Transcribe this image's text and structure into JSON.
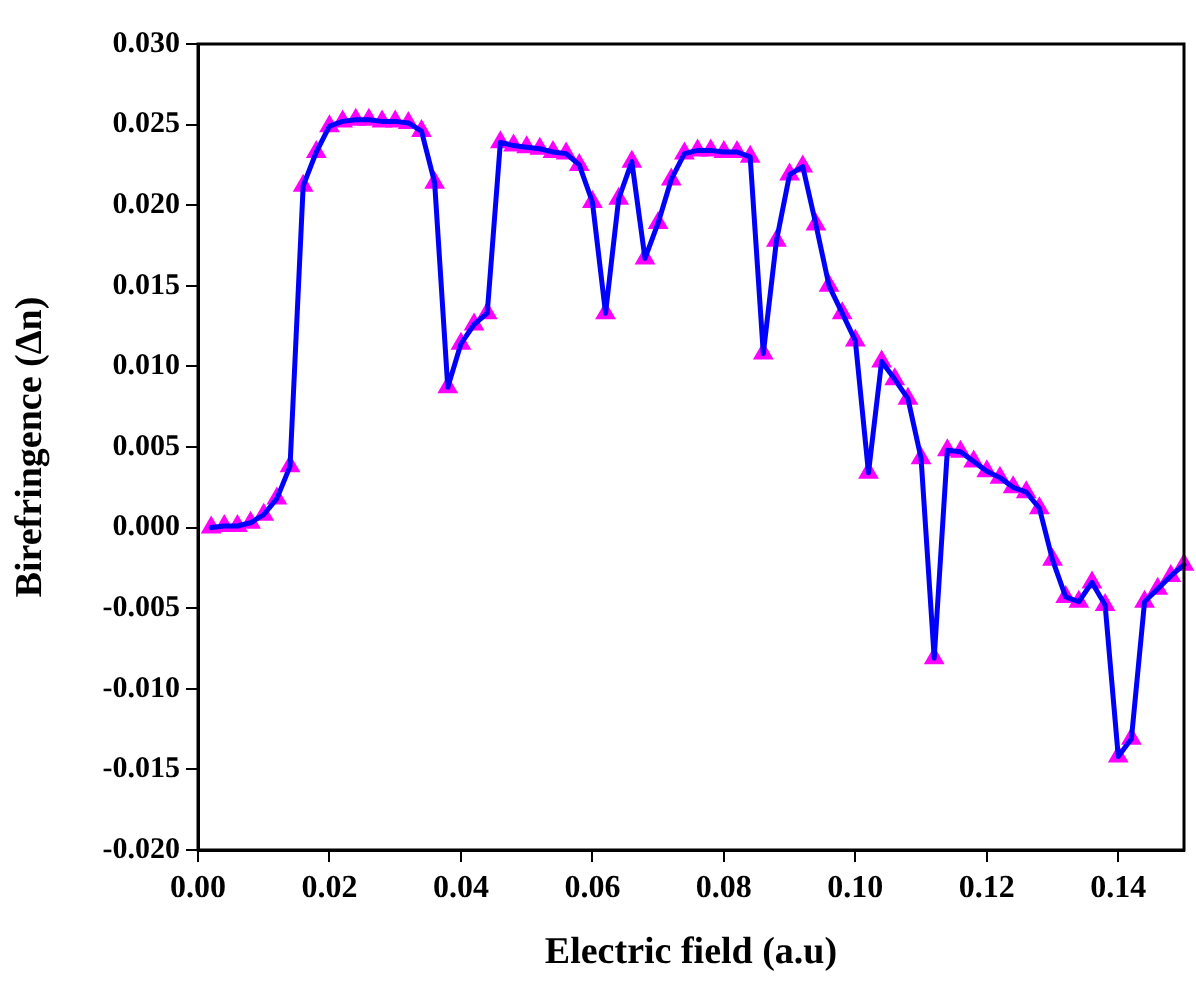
{
  "chart_data": {
    "type": "line",
    "xlabel": "Electric field (a.u)",
    "ylabel": "Birefringence (Δn)",
    "x": [
      0.002,
      0.004,
      0.006,
      0.008,
      0.01,
      0.012,
      0.014,
      0.016,
      0.018,
      0.02,
      0.022,
      0.024,
      0.026,
      0.028,
      0.03,
      0.032,
      0.034,
      0.036,
      0.038,
      0.04,
      0.042,
      0.044,
      0.046,
      0.048,
      0.05,
      0.052,
      0.054,
      0.056,
      0.058,
      0.06,
      0.062,
      0.064,
      0.066,
      0.068,
      0.07,
      0.072,
      0.074,
      0.076,
      0.078,
      0.08,
      0.082,
      0.084,
      0.086,
      0.088,
      0.09,
      0.092,
      0.094,
      0.096,
      0.098,
      0.1,
      0.102,
      0.104,
      0.106,
      0.108,
      0.11,
      0.112,
      0.114,
      0.116,
      0.118,
      0.12,
      0.122,
      0.124,
      0.126,
      0.128,
      0.13,
      0.132,
      0.134,
      0.136,
      0.138,
      0.14,
      0.142,
      0.144,
      0.146,
      0.148,
      0.15
    ],
    "series": [
      {
        "color": "#0000ff",
        "colors": [
          "#ff00ff",
          "#ff00ff",
          "#ff00ff",
          "#ff00ff",
          "#ff00ff",
          "#ff00ff",
          "#ff00ff",
          "#ff00ff",
          "#ff00ff",
          "#ff00ff",
          "#ff00ff",
          "#ff00ff",
          "#ff00ff",
          "#ff00ff",
          "#ff00ff",
          "#ff00ff",
          "#ff00ff",
          "#ff00ff",
          "#ff00ff",
          "#ff00ff",
          "#ff00ff",
          "#ff00ff",
          "#ff00ff",
          "#ff00ff",
          "#ff00ff",
          "#ff00ff",
          "#ff00ff",
          "#ff00ff",
          "#ff00ff",
          "#ff00ff",
          "#ff00ff",
          "#ff00ff",
          "#ff00ff",
          "#ff00ff",
          "#ff00ff",
          "#ff00ff",
          "#ff00ff",
          "#ff00ff",
          "#ff00ff",
          "#ff00ff",
          "#ff00ff",
          "#ff00ff",
          "#ff00ff",
          "#ff00ff",
          "#ff00ff",
          "#ff00ff",
          "#ff00ff",
          "#ff00ff",
          "#ff00ff",
          "#ff00ff",
          "#ff00ff",
          "#ff00ff",
          "#ff00ff",
          "#ff00ff",
          "#ff00ff",
          "#ff00ff",
          "#ff00ff",
          "#ff00ff",
          "#ff00ff",
          "#ff00ff",
          "#ff00ff",
          "#ff00ff",
          "#ff00ff",
          "#ff00ff",
          "#ff00ff",
          "#ff00ff",
          "#ff00ff",
          "#ff00ff",
          "#ff00ff",
          "#ff00ff",
          "#ff00ff",
          "#ff00ff",
          "#ff00ff",
          "#ff00ff",
          "#ff00ff"
        ],
        "values": [
          0.0,
          0.0001,
          0.0001,
          0.0003,
          0.0008,
          0.0018,
          0.0038,
          0.0212,
          0.0233,
          0.0249,
          0.0252,
          0.0253,
          0.0253,
          0.0252,
          0.0252,
          0.0251,
          0.0246,
          0.0214,
          0.0087,
          0.0114,
          0.0126,
          0.0133,
          0.0239,
          0.0237,
          0.0236,
          0.0235,
          0.0233,
          0.0232,
          0.0225,
          0.0202,
          0.0133,
          0.0204,
          0.0227,
          0.0167,
          0.0189,
          0.0216,
          0.0232,
          0.0234,
          0.0234,
          0.0233,
          0.0233,
          0.023,
          0.0108,
          0.0178,
          0.0219,
          0.0224,
          0.0188,
          0.015,
          0.0133,
          0.0116,
          0.0034,
          0.0103,
          0.0092,
          0.008,
          0.0043,
          -0.0081,
          0.0048,
          0.0047,
          0.0041,
          0.0035,
          0.0031,
          0.0025,
          0.0022,
          0.0012,
          -0.002,
          -0.0043,
          -0.0046,
          -0.0034,
          -0.0048,
          -0.0142,
          -0.0131,
          -0.0046,
          -0.0038,
          -0.003,
          -0.0023
        ]
      }
    ],
    "xlim": [
      0,
      0.15
    ],
    "xticks": [
      {
        "value": 0,
        "label": "0.00"
      },
      {
        "value": 0.02,
        "label": "0.02"
      },
      {
        "value": 0.04,
        "label": "0.04"
      },
      {
        "value": 0.06,
        "label": "0.06"
      },
      {
        "value": 0.08,
        "label": "0.08"
      },
      {
        "value": 0.1,
        "label": "0.10"
      },
      {
        "value": 0.12,
        "label": "0.12"
      },
      {
        "value": 0.14,
        "label": "0.14"
      }
    ],
    "ylim": [
      -0.02,
      0.03
    ],
    "yticks": [
      {
        "value": -0.02,
        "label": "-0.020"
      },
      {
        "value": -0.015,
        "label": "-0.015"
      },
      {
        "value": -0.01,
        "label": "-0.010"
      },
      {
        "value": -0.005,
        "label": "-0.005"
      },
      {
        "value": 0,
        "label": "0.000"
      },
      {
        "value": 0.005,
        "label": "0.005"
      },
      {
        "value": 0.01,
        "label": "0.010"
      },
      {
        "value": 0.015,
        "label": "0.015"
      },
      {
        "value": 0.02,
        "label": "0.020"
      },
      {
        "value": 0.025,
        "label": "0.025"
      },
      {
        "value": 0.03,
        "label": "0.030"
      }
    ],
    "grid": false,
    "legend": false,
    "marker": "triangle",
    "line_style": "solid"
  }
}
